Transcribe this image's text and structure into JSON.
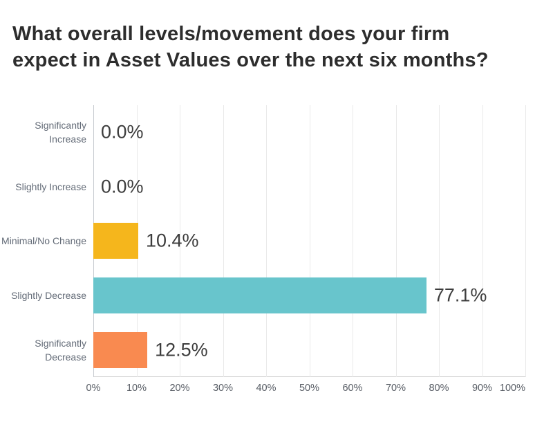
{
  "title": {
    "full": "What overall levels/movement does your firm expect in Asset Values over the next six months?",
    "line1": "What overall levels/movement does your firm",
    "line2": "expect in Asset Values over the next six months?"
  },
  "chart_data": {
    "type": "bar",
    "orientation": "horizontal",
    "title": "What overall levels/movement does your firm expect in Asset Values over the next six months?",
    "categories": [
      "Significantly Increase",
      "Slightly Increase",
      "Minimal/No Change",
      "Slightly Decrease",
      "Significantly Decrease"
    ],
    "values": [
      0.0,
      0.0,
      10.4,
      77.1,
      12.5
    ],
    "value_labels": [
      "0.0%",
      "0.0%",
      "10.4%",
      "77.1%",
      "12.5%"
    ],
    "bar_colors": [
      null,
      null,
      "#f5b61c",
      "#68c5cc",
      "#f98a50"
    ],
    "x_ticks": [
      "0%",
      "10%",
      "20%",
      "30%",
      "40%",
      "50%",
      "60%",
      "70%",
      "80%",
      "90%",
      "100%"
    ],
    "xlim": [
      0,
      100
    ],
    "xlabel": "",
    "ylabel": "",
    "grid": true,
    "legend": false
  },
  "colors": {
    "background": "#ffffff",
    "title_text": "#2d2d2d",
    "value_text": "#3d3d3d",
    "category_text": "#636b77",
    "tick_text": "#575c64",
    "gridline": "#e9e9e9",
    "axis_line": "#cccccc",
    "bar_yellow": "#f5b61c",
    "bar_teal": "#68c5cc",
    "bar_orange": "#f98a50"
  }
}
